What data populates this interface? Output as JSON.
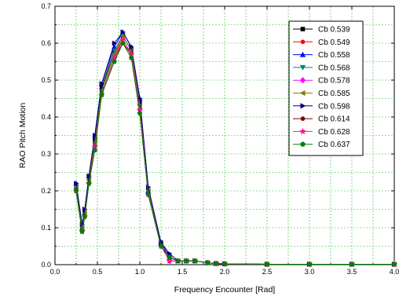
{
  "chart_data": {
    "type": "line",
    "title": "",
    "xlabel": "Frequency Encounter [Rad]",
    "ylabel": "RAO Pitch Motion",
    "xlim": [
      0.0,
      4.0
    ],
    "ylim": [
      0.0,
      0.7
    ],
    "xticks": [
      "0.0",
      "0.5",
      "1.0",
      "1.5",
      "2.0",
      "2.5",
      "3.0",
      "3.5",
      "4.0"
    ],
    "yticks": [
      "0.0",
      "0.1",
      "0.2",
      "0.3",
      "0.4",
      "0.5",
      "0.6",
      "0.7"
    ],
    "grid": true,
    "legend_position": "top-right",
    "x": [
      0.25,
      0.32,
      0.35,
      0.4,
      0.47,
      0.55,
      0.7,
      0.8,
      0.9,
      1.0,
      1.1,
      1.25,
      1.35,
      1.45,
      1.55,
      1.65,
      1.8,
      1.9,
      2.0,
      2.5,
      3.0,
      3.5,
      4.0
    ],
    "series": [
      {
        "name": "Cb 0.539",
        "color": "#000000",
        "marker": "square",
        "values": [
          0.21,
          0.1,
          0.14,
          0.24,
          0.34,
          0.48,
          0.58,
          0.62,
          0.58,
          0.44,
          0.2,
          0.06,
          0.02,
          0.01,
          0.01,
          0.01,
          0.005,
          0.003,
          0.002,
          0.001,
          0.001,
          0.001,
          0.001
        ]
      },
      {
        "name": "Cb 0.549",
        "color": "#ff0000",
        "marker": "circle",
        "values": [
          0.2,
          0.09,
          0.13,
          0.23,
          0.33,
          0.47,
          0.57,
          0.61,
          0.57,
          0.42,
          0.19,
          0.05,
          0.02,
          0.01,
          0.01,
          0.01,
          0.005,
          0.003,
          0.002,
          0.001,
          0.001,
          0.001,
          0.001
        ]
      },
      {
        "name": "Cb 0.558",
        "color": "#0000ff",
        "marker": "triangle-up",
        "values": [
          0.22,
          0.1,
          0.14,
          0.24,
          0.35,
          0.49,
          0.59,
          0.63,
          0.59,
          0.45,
          0.2,
          0.06,
          0.02,
          0.01,
          0.01,
          0.01,
          0.005,
          0.003,
          0.002,
          0.001,
          0.001,
          0.001,
          0.001
        ]
      },
      {
        "name": "Cb 0.568",
        "color": "#008080",
        "marker": "triangle-down",
        "values": [
          0.21,
          0.09,
          0.13,
          0.23,
          0.33,
          0.47,
          0.58,
          0.62,
          0.58,
          0.43,
          0.2,
          0.05,
          0.02,
          0.01,
          0.01,
          0.01,
          0.005,
          0.003,
          0.002,
          0.001,
          0.001,
          0.001,
          0.001
        ]
      },
      {
        "name": "Cb 0.578",
        "color": "#ff00ff",
        "marker": "diamond",
        "values": [
          0.2,
          0.09,
          0.13,
          0.22,
          0.32,
          0.46,
          0.56,
          0.61,
          0.57,
          0.42,
          0.19,
          0.05,
          0.01,
          0.01,
          0.01,
          0.01,
          0.005,
          0.003,
          0.002,
          0.001,
          0.001,
          0.001,
          0.001
        ]
      },
      {
        "name": "Cb 0.585",
        "color": "#808000",
        "marker": "triangle-left",
        "values": [
          0.21,
          0.1,
          0.14,
          0.23,
          0.33,
          0.47,
          0.57,
          0.62,
          0.58,
          0.43,
          0.2,
          0.05,
          0.02,
          0.01,
          0.01,
          0.01,
          0.005,
          0.003,
          0.002,
          0.001,
          0.001,
          0.001,
          0.001
        ]
      },
      {
        "name": "Cb 0.598",
        "color": "#000080",
        "marker": "triangle-right",
        "values": [
          0.22,
          0.11,
          0.15,
          0.24,
          0.35,
          0.49,
          0.6,
          0.63,
          0.59,
          0.45,
          0.21,
          0.06,
          0.03,
          0.01,
          0.01,
          0.01,
          0.005,
          0.003,
          0.002,
          0.001,
          0.001,
          0.001,
          0.001
        ]
      },
      {
        "name": "Cb 0.614",
        "color": "#800000",
        "marker": "circle",
        "values": [
          0.2,
          0.09,
          0.13,
          0.22,
          0.32,
          0.46,
          0.56,
          0.6,
          0.57,
          0.41,
          0.19,
          0.05,
          0.02,
          0.01,
          0.01,
          0.01,
          0.005,
          0.003,
          0.002,
          0.001,
          0.001,
          0.001,
          0.001
        ]
      },
      {
        "name": "Cb 0.628",
        "color": "#ff1493",
        "marker": "star",
        "values": [
          0.2,
          0.09,
          0.13,
          0.22,
          0.32,
          0.46,
          0.56,
          0.61,
          0.57,
          0.42,
          0.19,
          0.05,
          0.01,
          0.01,
          0.01,
          0.01,
          0.005,
          0.003,
          0.002,
          0.001,
          0.001,
          0.001,
          0.001
        ]
      },
      {
        "name": "Cb 0.637",
        "color": "#008000",
        "marker": "pentagon",
        "values": [
          0.2,
          0.09,
          0.13,
          0.22,
          0.31,
          0.46,
          0.55,
          0.6,
          0.56,
          0.41,
          0.19,
          0.05,
          0.02,
          0.01,
          0.01,
          0.01,
          0.005,
          0.003,
          0.002,
          0.001,
          0.001,
          0.001,
          0.001
        ]
      }
    ]
  }
}
